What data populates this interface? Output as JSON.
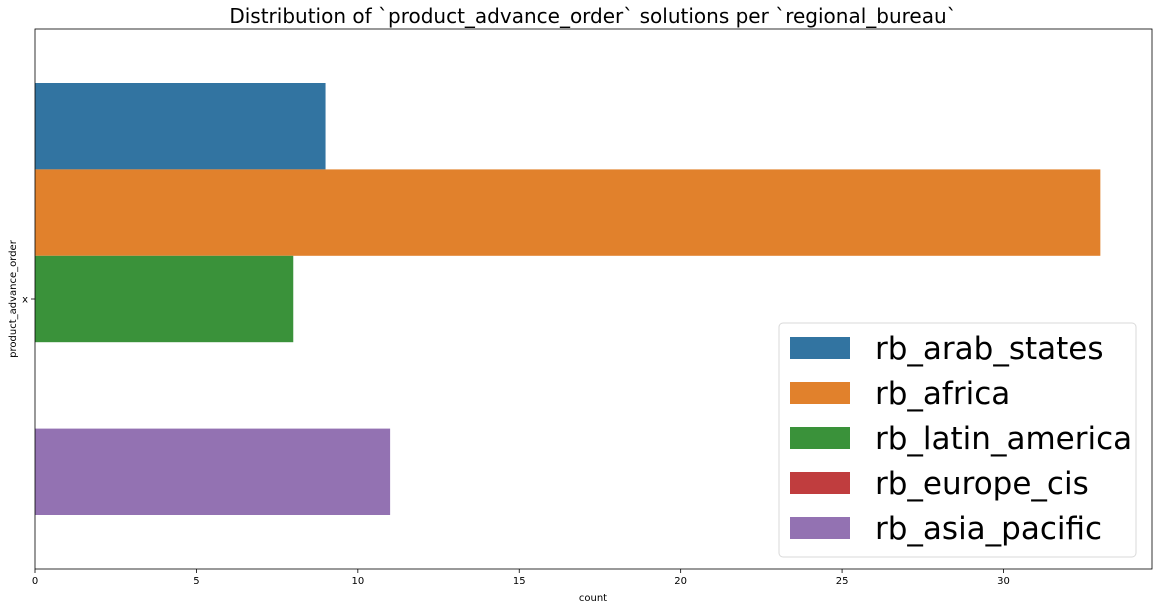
{
  "chart_data": {
    "type": "bar",
    "orientation": "horizontal",
    "title": "Distribution of `product_advance_order` solutions per `regional_bureau`",
    "xlabel": "count",
    "ylabel": "product_advance_order",
    "categories": [
      "x"
    ],
    "xlim": [
      0,
      34.6
    ],
    "xticks": [
      0,
      5,
      10,
      15,
      20,
      25,
      30
    ],
    "series": [
      {
        "name": "rb_arab_states",
        "values": [
          9
        ],
        "color": "#3274a1"
      },
      {
        "name": "rb_africa",
        "values": [
          33
        ],
        "color": "#e1812c"
      },
      {
        "name": "rb_latin_america",
        "values": [
          8
        ],
        "color": "#3a923a"
      },
      {
        "name": "rb_europe_cis",
        "values": [
          0
        ],
        "color": "#c03d3e"
      },
      {
        "name": "rb_asia_pacific",
        "values": [
          11
        ],
        "color": "#9372b2"
      }
    ],
    "legend_position": "lower-right",
    "grid": false
  }
}
